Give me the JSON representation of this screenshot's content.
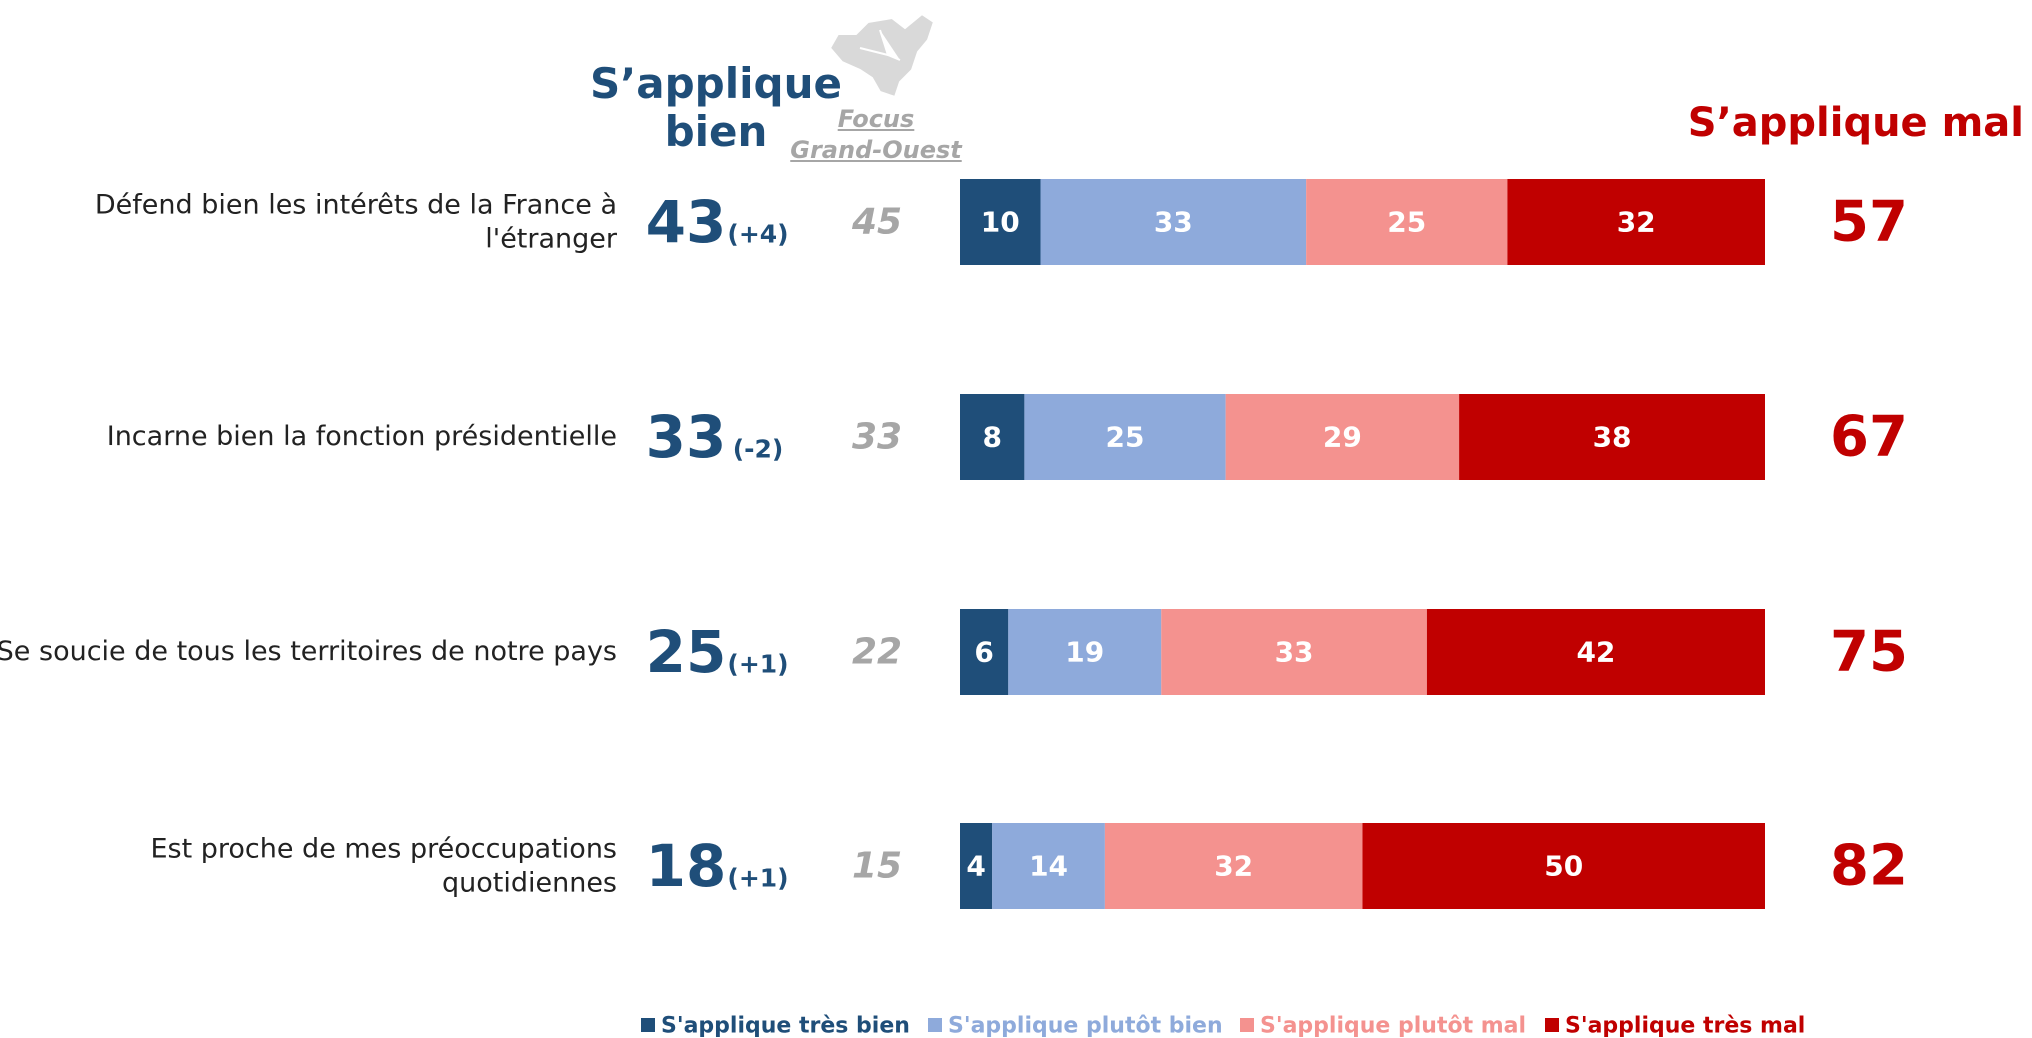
{
  "chart_data": {
    "type": "stacked-bar-horizontal",
    "header_good": "S’applique\nbien",
    "header_focus": "Focus\nGrand-Ouest",
    "header_bad": "S’applique mal",
    "categories": [
      "Défend bien les intérêts de la France à\nl'étranger",
      "Incarne bien la fonction présidentielle",
      "Se soucie de tous les territoires de notre pays",
      "Est proche de mes préoccupations\nquotidiennes"
    ],
    "good_totals": [
      43,
      33,
      25,
      18
    ],
    "good_changes": [
      "(+4)",
      "(-2)",
      "(+1)",
      "(+1)"
    ],
    "focus_values": [
      45,
      33,
      22,
      15
    ],
    "bad_totals": [
      57,
      67,
      75,
      82
    ],
    "good_color": "#1f4e79",
    "focus_color": "#a6a6a6",
    "bad_color": "#c00000",
    "series": [
      {
        "name": "S'applique très bien",
        "color": "#1f4e79",
        "values": [
          10,
          8,
          6,
          4
        ]
      },
      {
        "name": "S'applique plutôt bien",
        "color": "#8eaadb",
        "values": [
          33,
          25,
          19,
          14
        ]
      },
      {
        "name": "S'applique plutôt mal",
        "color": "#f4928f",
        "values": [
          25,
          29,
          33,
          32
        ]
      },
      {
        "name": "S'applique très mal",
        "color": "#c00000",
        "values": [
          32,
          38,
          42,
          50
        ]
      }
    ]
  }
}
